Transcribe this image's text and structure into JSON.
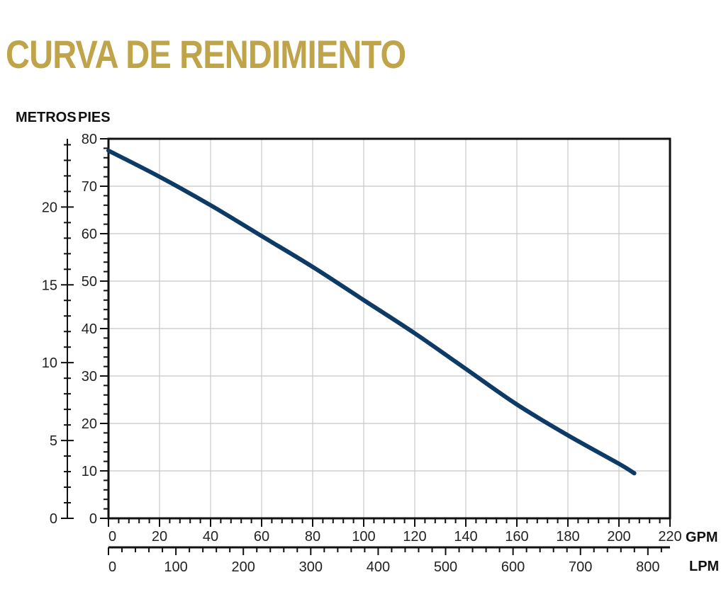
{
  "title": "CURVA DE RENDIMIENTO",
  "colors": {
    "title": "#bfa44a",
    "curve": "#0e3a66",
    "grid": "#c8c8c8",
    "axis": "#111111"
  },
  "chart_data": {
    "type": "line",
    "title": "CURVA DE RENDIMIENTO",
    "y_label_metros": "METROS",
    "y_label_pies": "PIES",
    "x_label_gpm": "GPM",
    "x_label_lpm": "LPM",
    "x_range_gpm": [
      0,
      220
    ],
    "y_range_pies": [
      0,
      80
    ],
    "grid": true,
    "x_ticks_gpm": [
      0,
      20,
      40,
      60,
      80,
      100,
      120,
      140,
      160,
      180,
      200,
      220
    ],
    "y_ticks_pies": [
      0,
      10,
      20,
      30,
      40,
      50,
      60,
      70,
      80
    ],
    "y_ticks_metros": [
      0,
      5,
      10,
      15,
      20
    ],
    "x_ticks_lpm": [
      0,
      100,
      200,
      300,
      400,
      500,
      600,
      700,
      800
    ],
    "series": [
      {
        "x": [
          0,
          20,
          40,
          60,
          80,
          100,
          120,
          140,
          160,
          180,
          200,
          206
        ],
        "y": [
          77.5,
          72,
          66,
          59.5,
          53,
          46,
          39,
          31.5,
          24,
          17.5,
          11.5,
          9.5
        ]
      }
    ]
  }
}
